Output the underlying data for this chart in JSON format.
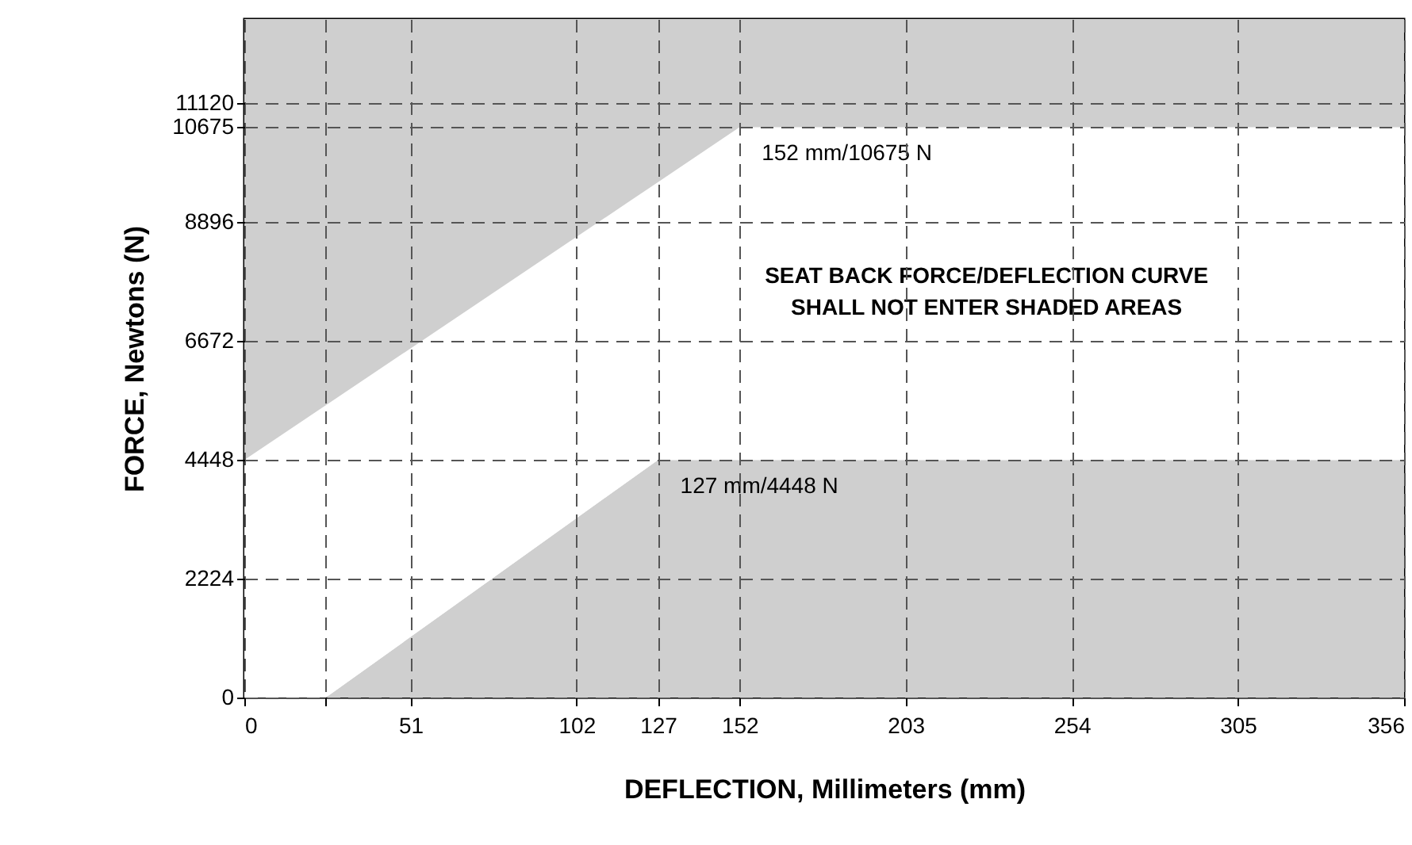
{
  "chart_data": {
    "type": "area",
    "xlabel": "DEFLECTION, Millimeters (mm)",
    "ylabel": "FORCE, Newtons (N)",
    "xlim": [
      0,
      356
    ],
    "ylim": [
      0,
      12700
    ],
    "xticks": [
      0,
      {
        "value": 25,
        "label": null
      },
      51,
      102,
      127,
      152,
      203,
      254,
      305,
      356
    ],
    "yticks": [
      0,
      2224,
      4448,
      6672,
      8896,
      10675,
      11120
    ],
    "grid": true,
    "stacked": true,
    "x": [
      0,
      25,
      127,
      152,
      356
    ],
    "series": [
      {
        "color": "#cfcfcf",
        "values": [
          0,
          0,
          4448,
          4448,
          4448
        ]
      },
      {
        "color": "#ffffff",
        "values": [
          4448,
          5470,
          5200,
          6227,
          6227
        ]
      },
      {
        "color": "#cfcfcf",
        "values": [
          8252,
          7230,
          3052,
          2025,
          2025
        ]
      }
    ],
    "annotations": [
      {
        "text": "152 mm/10675 N",
        "x": 152,
        "y": 10675
      },
      {
        "text": "127 mm/4448 N",
        "x": 127,
        "y": 4448
      },
      "SEAT BACK FORCE/DEFLECTION CURVE\nSHALL NOT ENTER SHADED AREAS"
    ]
  }
}
